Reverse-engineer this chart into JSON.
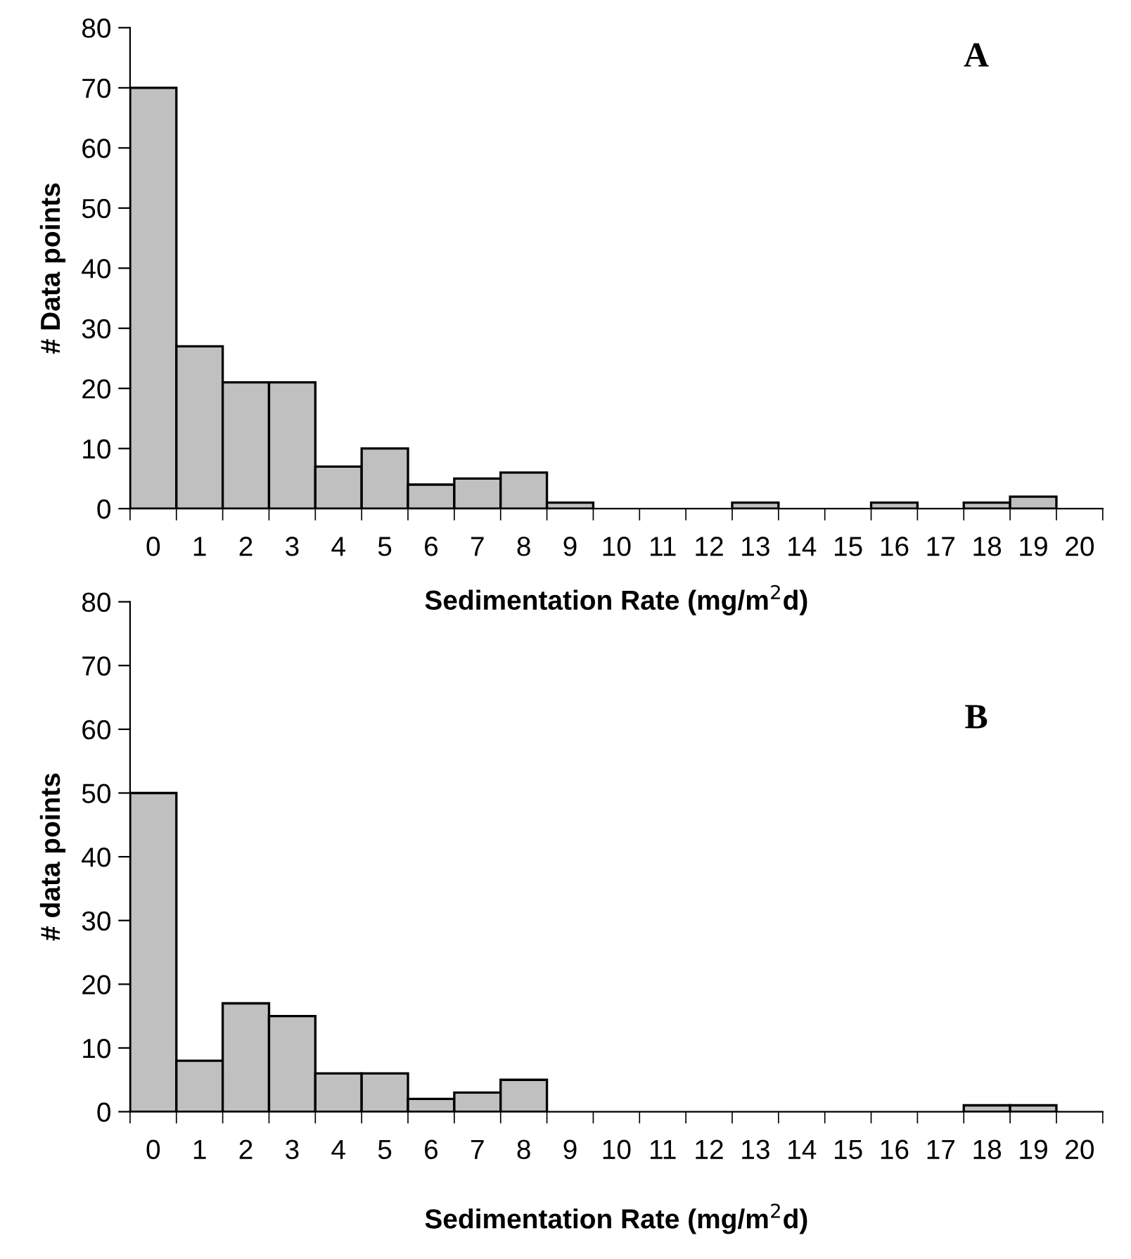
{
  "chart_data": [
    {
      "type": "bar",
      "categories": [
        "0",
        "1",
        "2",
        "3",
        "4",
        "5",
        "6",
        "7",
        "8",
        "9",
        "10",
        "11",
        "12",
        "13",
        "14",
        "15",
        "16",
        "17",
        "18",
        "19",
        "20"
      ],
      "values": [
        70,
        27,
        21,
        21,
        7,
        10,
        4,
        5,
        6,
        1,
        0,
        0,
        0,
        1,
        0,
        0,
        1,
        0,
        1,
        2,
        0
      ],
      "color": "#c0c0c0",
      "xlabel": "Sedimentation Rate (mg/m$^{2}$d)",
      "ylabel": "# Data points",
      "ylim": [
        0,
        80
      ],
      "yticks": [
        0,
        10,
        20,
        30,
        40,
        50,
        60,
        70,
        80
      ],
      "grid": false,
      "legend": false,
      "annotations": [
        "A"
      ]
    },
    {
      "type": "bar",
      "categories": [
        "0",
        "1",
        "2",
        "3",
        "4",
        "5",
        "6",
        "7",
        "8",
        "9",
        "10",
        "11",
        "12",
        "13",
        "14",
        "15",
        "16",
        "17",
        "18",
        "19",
        "20"
      ],
      "values": [
        50,
        8,
        17,
        15,
        6,
        6,
        2,
        3,
        5,
        0,
        0,
        0,
        0,
        0,
        0,
        0,
        0,
        0,
        1,
        1,
        0
      ],
      "color": "#c0c0c0",
      "xlabel": "Sedimentation Rate (mg/m$^{2}$d)",
      "ylabel": "# data points",
      "ylim": [
        0,
        80
      ],
      "yticks": [
        0,
        10,
        20,
        30,
        40,
        50,
        60,
        70,
        80
      ],
      "grid": false,
      "legend": false,
      "annotations": [
        "B"
      ]
    }
  ]
}
